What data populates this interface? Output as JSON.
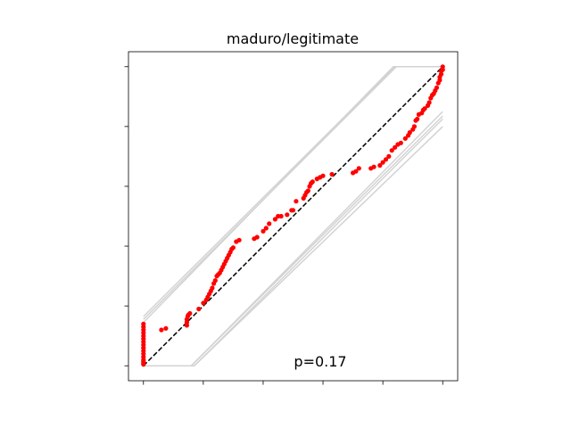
{
  "chart_data": {
    "type": "scatter",
    "title": "maduro/legitimate",
    "annotation": "p=0.17",
    "xlim": [
      -0.05,
      1.05
    ],
    "ylim": [
      -0.05,
      1.05
    ],
    "x_ticks": [
      0,
      0.2,
      0.4,
      0.6,
      0.8,
      1.0
    ],
    "y_ticks": [
      0,
      0.2,
      0.4,
      0.6,
      0.8,
      1.0
    ],
    "tick_labels_visible": false,
    "grid": false,
    "colors": {
      "points": "#ff0000",
      "reference": "#000000",
      "envelope": "#d3d3d3"
    },
    "reference_line": {
      "style": "dashed",
      "from": [
        0,
        0
      ],
      "to": [
        1,
        1
      ]
    },
    "envelope_lines": [
      {
        "x": [
          0,
          0.84,
          1.0
        ],
        "y": [
          0.165,
          1.0,
          1.0
        ]
      },
      {
        "x": [
          0,
          0.845,
          1.0
        ],
        "y": [
          0.155,
          1.0,
          1.0
        ]
      },
      {
        "x": [
          0,
          0.835,
          1.0
        ],
        "y": [
          0.145,
          1.0,
          1.0
        ]
      },
      {
        "x": [
          0,
          0.16,
          1.0
        ],
        "y": [
          0.0,
          0.0,
          0.835
        ]
      },
      {
        "x": [
          0,
          0.17,
          1.0
        ],
        "y": [
          0.0,
          0.0,
          0.825
        ]
      },
      {
        "x": [
          0,
          0.16,
          1.0
        ],
        "y": [
          0.0,
          0.0,
          0.85
        ]
      },
      {
        "x": [
          0,
          0.17,
          1.0
        ],
        "y": [
          0.0,
          0.0,
          0.8
        ]
      }
    ],
    "points": {
      "x": [
        0,
        0,
        0,
        0,
        0,
        0,
        0,
        0,
        0,
        0,
        0,
        0,
        0,
        0,
        0,
        0,
        0.06,
        0.075,
        0.145,
        0.145,
        0.145,
        0.148,
        0.15,
        0.155,
        0.185,
        0.2,
        0.21,
        0.215,
        0.22,
        0.225,
        0.23,
        0.235,
        0.24,
        0.245,
        0.25,
        0.255,
        0.26,
        0.265,
        0.27,
        0.275,
        0.28,
        0.285,
        0.29,
        0.295,
        0.3,
        0.31,
        0.32,
        0.37,
        0.38,
        0.4,
        0.41,
        0.42,
        0.44,
        0.45,
        0.46,
        0.48,
        0.495,
        0.5,
        0.51,
        0.535,
        0.54,
        0.545,
        0.55,
        0.555,
        0.56,
        0.565,
        0.58,
        0.59,
        0.6,
        0.63,
        0.7,
        0.71,
        0.72,
        0.76,
        0.77,
        0.79,
        0.8,
        0.81,
        0.82,
        0.83,
        0.84,
        0.85,
        0.86,
        0.875,
        0.885,
        0.89,
        0.9,
        0.905,
        0.91,
        0.915,
        0.92,
        0.93,
        0.935,
        0.94,
        0.95,
        0.955,
        0.96,
        0.965,
        0.97,
        0.975,
        0.98,
        0.985,
        0.99,
        0.99,
        0.995,
        0.995,
        1.0,
        1.0
      ],
      "y": [
        0.005,
        0.01,
        0.015,
        0.02,
        0.03,
        0.04,
        0.05,
        0.06,
        0.07,
        0.08,
        0.09,
        0.1,
        0.11,
        0.12,
        0.13,
        0.14,
        0.12,
        0.125,
        0.135,
        0.145,
        0.155,
        0.165,
        0.17,
        0.175,
        0.19,
        0.21,
        0.22,
        0.23,
        0.24,
        0.25,
        0.26,
        0.275,
        0.285,
        0.3,
        0.305,
        0.31,
        0.32,
        0.33,
        0.34,
        0.35,
        0.36,
        0.37,
        0.38,
        0.39,
        0.395,
        0.415,
        0.42,
        0.425,
        0.43,
        0.45,
        0.46,
        0.475,
        0.49,
        0.5,
        0.5,
        0.505,
        0.52,
        0.52,
        0.55,
        0.56,
        0.57,
        0.58,
        0.585,
        0.6,
        0.61,
        0.615,
        0.625,
        0.63,
        0.635,
        0.64,
        0.645,
        0.65,
        0.66,
        0.66,
        0.665,
        0.67,
        0.68,
        0.69,
        0.7,
        0.72,
        0.73,
        0.74,
        0.745,
        0.76,
        0.77,
        0.78,
        0.79,
        0.8,
        0.82,
        0.825,
        0.84,
        0.845,
        0.855,
        0.86,
        0.87,
        0.88,
        0.895,
        0.905,
        0.91,
        0.92,
        0.93,
        0.945,
        0.955,
        0.965,
        0.975,
        0.985,
        0.99,
        1.0
      ]
    }
  }
}
